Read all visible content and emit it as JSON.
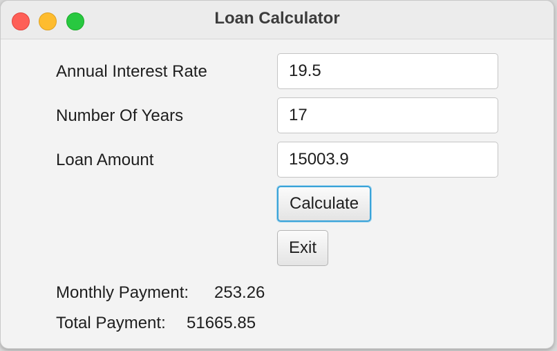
{
  "window": {
    "title": "Loan Calculator"
  },
  "form": {
    "interest_label": "Annual Interest Rate",
    "interest_value": "19.5",
    "years_label": "Number Of Years",
    "years_value": "17",
    "amount_label": "Loan Amount",
    "amount_value": "15003.9"
  },
  "buttons": {
    "calculate_label": "Calculate",
    "exit_label": "Exit"
  },
  "results": {
    "monthly_label": "Monthly Payment:",
    "monthly_value": "253.26",
    "total_label": "Total Payment:",
    "total_value": "51665.85"
  },
  "colors": {
    "close": "#fe5f57",
    "minimize": "#febc2e",
    "zoom": "#28c840",
    "focus_ring": "#3aa3d8"
  }
}
